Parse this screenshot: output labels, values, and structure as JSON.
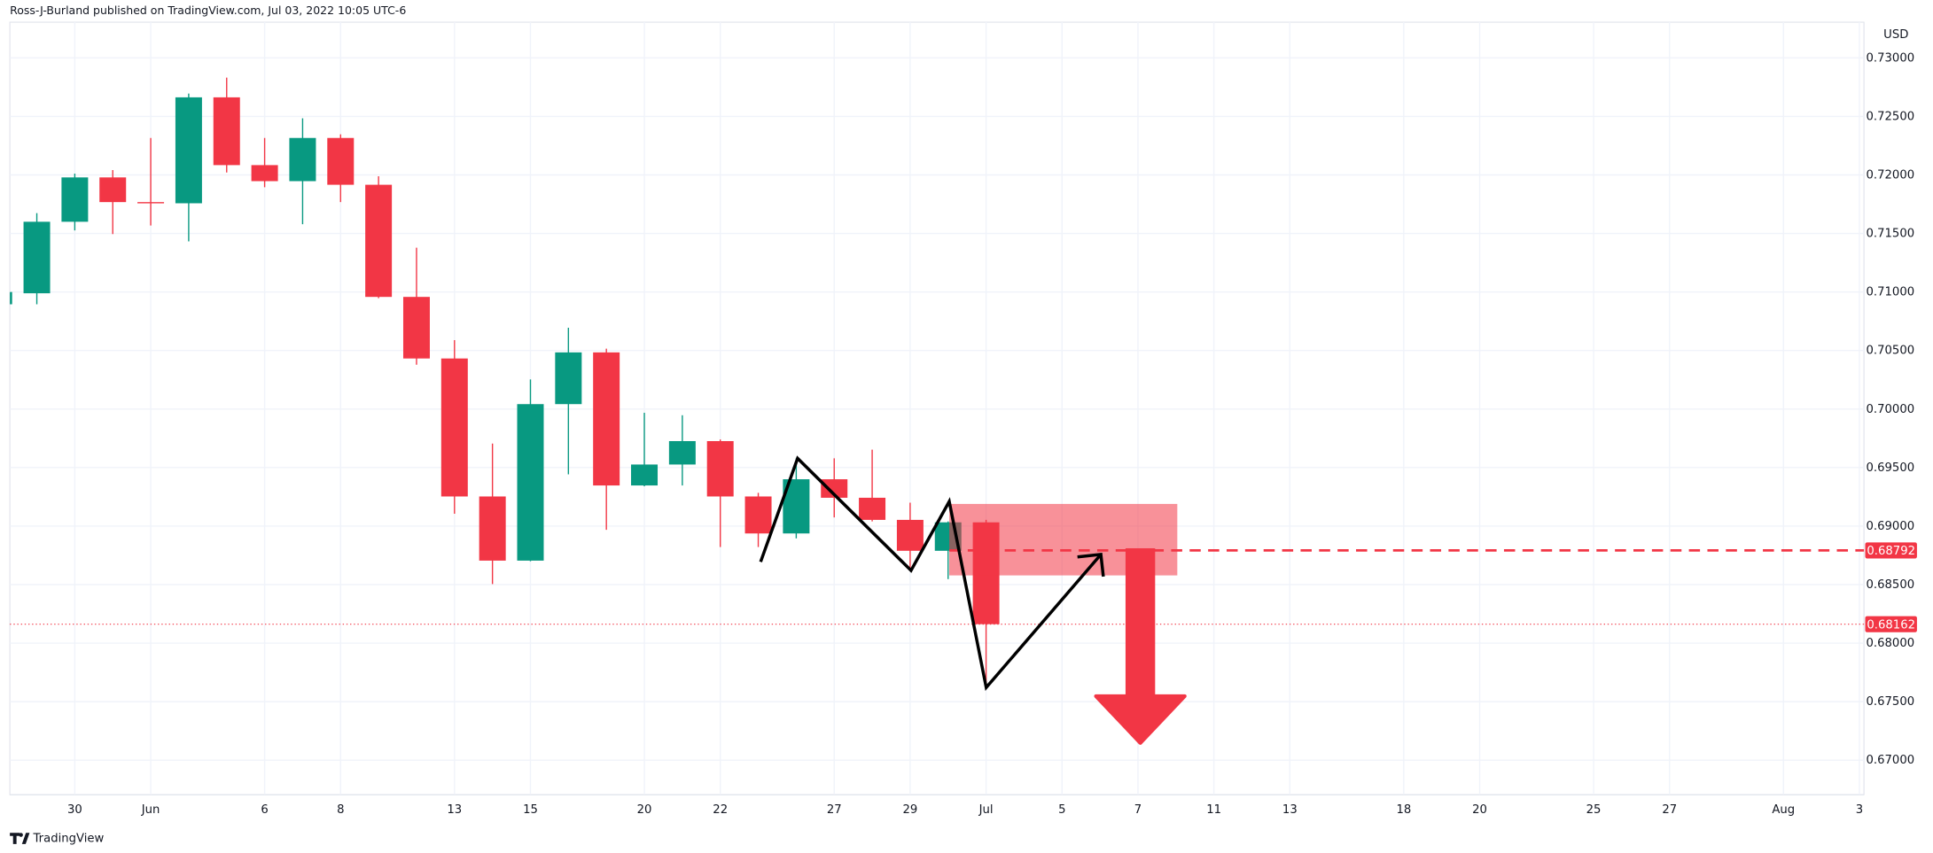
{
  "chart_data": {
    "type": "candlestick",
    "title": "Ross-J-Burland published on TradingView.com, Jul 03, 2022 10:05 UTC-6",
    "unit": "USD",
    "source": "TradingView",
    "up_color": "#089981",
    "down_color": "#f23645",
    "grid": true,
    "x": [
      -1,
      0,
      1,
      2,
      3,
      4,
      5,
      6,
      7,
      8,
      9,
      10,
      11,
      12,
      13,
      14,
      15,
      16,
      17,
      18,
      19,
      20,
      21,
      22,
      23,
      24,
      25
    ],
    "open": [
      0.70895,
      0.70989,
      0.716,
      0.71979,
      0.71768,
      0.71758,
      0.72663,
      0.72084,
      0.71947,
      0.72316,
      0.71916,
      0.70958,
      0.70432,
      0.69253,
      0.68705,
      0.70042,
      0.70484,
      0.69347,
      0.69526,
      0.69726,
      0.69253,
      0.68937,
      0.694,
      0.69242,
      0.69053,
      0.68789,
      0.69032
    ],
    "high": [
      0.71,
      0.71674,
      0.72011,
      0.72042,
      0.72316,
      0.72695,
      0.72832,
      0.72316,
      0.72484,
      0.72347,
      0.71989,
      0.71379,
      0.70589,
      0.69705,
      0.70253,
      0.70695,
      0.70516,
      0.69968,
      0.69947,
      0.6974,
      0.69284,
      0.69579,
      0.69579,
      0.69653,
      0.692,
      0.6904,
      0.69053
    ],
    "low": [
      0.70895,
      0.70895,
      0.71526,
      0.71495,
      0.71568,
      0.71432,
      0.72021,
      0.71895,
      0.71579,
      0.71768,
      0.70947,
      0.70379,
      0.69105,
      0.68505,
      0.687,
      0.69442,
      0.68968,
      0.6934,
      0.69347,
      0.68821,
      0.68821,
      0.68895,
      0.69074,
      0.6904,
      0.68621,
      0.68547,
      0.67642
    ],
    "close": [
      0.71,
      0.716,
      0.71979,
      0.71768,
      0.71758,
      0.72663,
      0.72084,
      0.71947,
      0.72316,
      0.71916,
      0.70958,
      0.70432,
      0.69253,
      0.68705,
      0.70042,
      0.70484,
      0.69347,
      0.69526,
      0.69726,
      0.69253,
      0.68937,
      0.694,
      0.69242,
      0.69053,
      0.68789,
      0.69032,
      0.68162
    ],
    "xlim": [
      -0.71,
      48.12
    ],
    "xticks": [
      {
        "value": 1,
        "label": "30"
      },
      {
        "value": 3,
        "label": "Jun"
      },
      {
        "value": 6,
        "label": "6"
      },
      {
        "value": 8,
        "label": "8"
      },
      {
        "value": 11,
        "label": "13"
      },
      {
        "value": 13,
        "label": "15"
      },
      {
        "value": 16,
        "label": "20"
      },
      {
        "value": 18,
        "label": "22"
      },
      {
        "value": 21,
        "label": "27"
      },
      {
        "value": 23,
        "label": "29"
      },
      {
        "value": 25,
        "label": "Jul"
      },
      {
        "value": 27,
        "label": "5"
      },
      {
        "value": 29,
        "label": "7"
      },
      {
        "value": 31,
        "label": "11"
      },
      {
        "value": 33,
        "label": "13"
      },
      {
        "value": 36,
        "label": "18"
      },
      {
        "value": 38,
        "label": "20"
      },
      {
        "value": 41,
        "label": "25"
      },
      {
        "value": 43,
        "label": "27"
      },
      {
        "value": 46,
        "label": "Aug"
      },
      {
        "value": 48,
        "label": "3"
      }
    ],
    "ylim": [
      0.66705,
      0.73305
    ],
    "yticks": [
      {
        "value": 0.73,
        "label": "0.73000"
      },
      {
        "value": 0.725,
        "label": "0.72500"
      },
      {
        "value": 0.72,
        "label": "0.72000"
      },
      {
        "value": 0.715,
        "label": "0.71500"
      },
      {
        "value": 0.71,
        "label": "0.71000"
      },
      {
        "value": 0.705,
        "label": "0.70500"
      },
      {
        "value": 0.7,
        "label": "0.70000"
      },
      {
        "value": 0.695,
        "label": "0.69500"
      },
      {
        "value": 0.69,
        "label": "0.69000"
      },
      {
        "value": 0.685,
        "label": "0.68500"
      },
      {
        "value": 0.68,
        "label": "0.68000"
      },
      {
        "value": 0.675,
        "label": "0.67500"
      },
      {
        "value": 0.67,
        "label": "0.67000"
      }
    ],
    "level_line": 0.68792,
    "last_price": 0.68162
  }
}
